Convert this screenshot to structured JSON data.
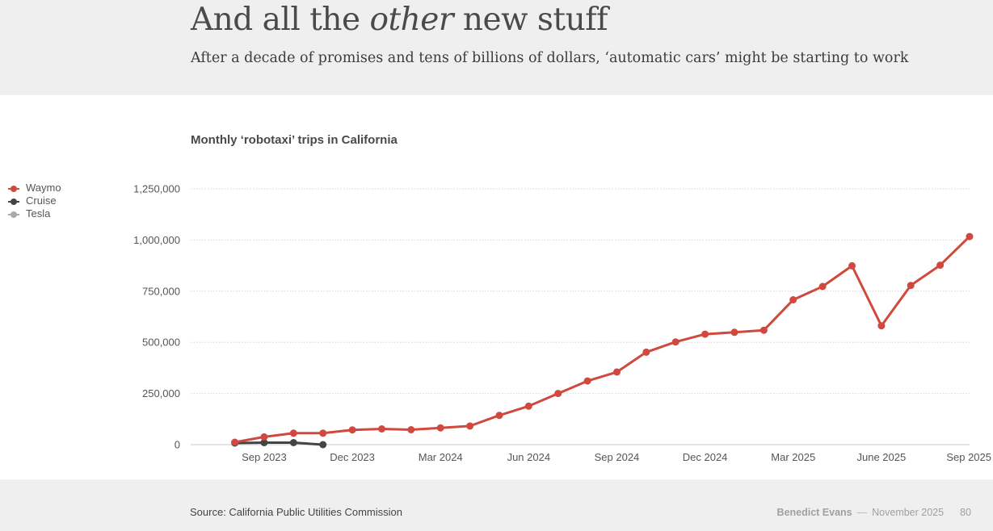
{
  "header": {
    "title_pre": "And all the ",
    "title_em": "other",
    "title_post": " new stuff",
    "subtitle": "After a decade of promises and tens of billions of dollars, ‘automatic cars’ might be starting to work"
  },
  "colors": {
    "waymo": "#d0483e",
    "cruise": "#444444",
    "tesla": "#aaaaaa",
    "grid": "#d6d6d6",
    "axis": "#c8c8c8",
    "tick_text": "#555555"
  },
  "chart_data": {
    "type": "line",
    "title": "Monthly ‘robotaxi’ trips in California",
    "xlabel": "",
    "ylabel": "",
    "ylim": [
      0,
      1250000
    ],
    "y_ticks": [
      0,
      250000,
      500000,
      750000,
      1000000,
      1250000
    ],
    "y_tick_labels": [
      "0",
      "250,000",
      "500,000",
      "750,000",
      "1,000,000",
      "1,250,000"
    ],
    "x_range": [
      "2023-06",
      "2025-09"
    ],
    "x_ticks": [
      "2023-09",
      "2023-12",
      "2024-03",
      "2024-06",
      "2024-09",
      "2024-12",
      "2025-03",
      "2025-06",
      "2025-09"
    ],
    "x_tick_labels": [
      "Sep 2023",
      "Dec 2023",
      "Mar 2024",
      "Jun 2024",
      "Sep 2024",
      "Dec 2024",
      "Mar 2025",
      "June 2025",
      "Sep 2025"
    ],
    "grid": true,
    "legend_position": "left",
    "series": [
      {
        "name": "Waymo",
        "color": "#d0483e",
        "x": [
          "2023-08",
          "2023-09",
          "2023-10",
          "2023-11",
          "2023-12",
          "2024-01",
          "2024-02",
          "2024-03",
          "2024-04",
          "2024-05",
          "2024-06",
          "2024-07",
          "2024-08",
          "2024-09",
          "2024-10",
          "2024-11",
          "2024-12",
          "2025-01",
          "2025-02",
          "2025-03",
          "2025-04",
          "2025-05",
          "2025-06",
          "2025-07",
          "2025-08",
          "2025-09"
        ],
        "values": [
          12000,
          38000,
          56000,
          56000,
          72000,
          77000,
          73000,
          82000,
          91000,
          143000,
          188000,
          250000,
          311000,
          355000,
          452000,
          502000,
          540000,
          549000,
          559000,
          708000,
          773000,
          874000,
          581000,
          778000,
          877000,
          1017000
        ]
      },
      {
        "name": "Cruise",
        "color": "#444444",
        "x": [
          "2023-08",
          "2023-09",
          "2023-10",
          "2023-11"
        ],
        "values": [
          8000,
          10000,
          10000,
          0
        ]
      },
      {
        "name": "Tesla",
        "color": "#aaaaaa",
        "x": [],
        "values": []
      }
    ]
  },
  "footer": {
    "source": "Source: California Public Utilities Commission",
    "author": "Benedict Evans",
    "separator": "—",
    "date": "November 2025",
    "page": "80"
  }
}
